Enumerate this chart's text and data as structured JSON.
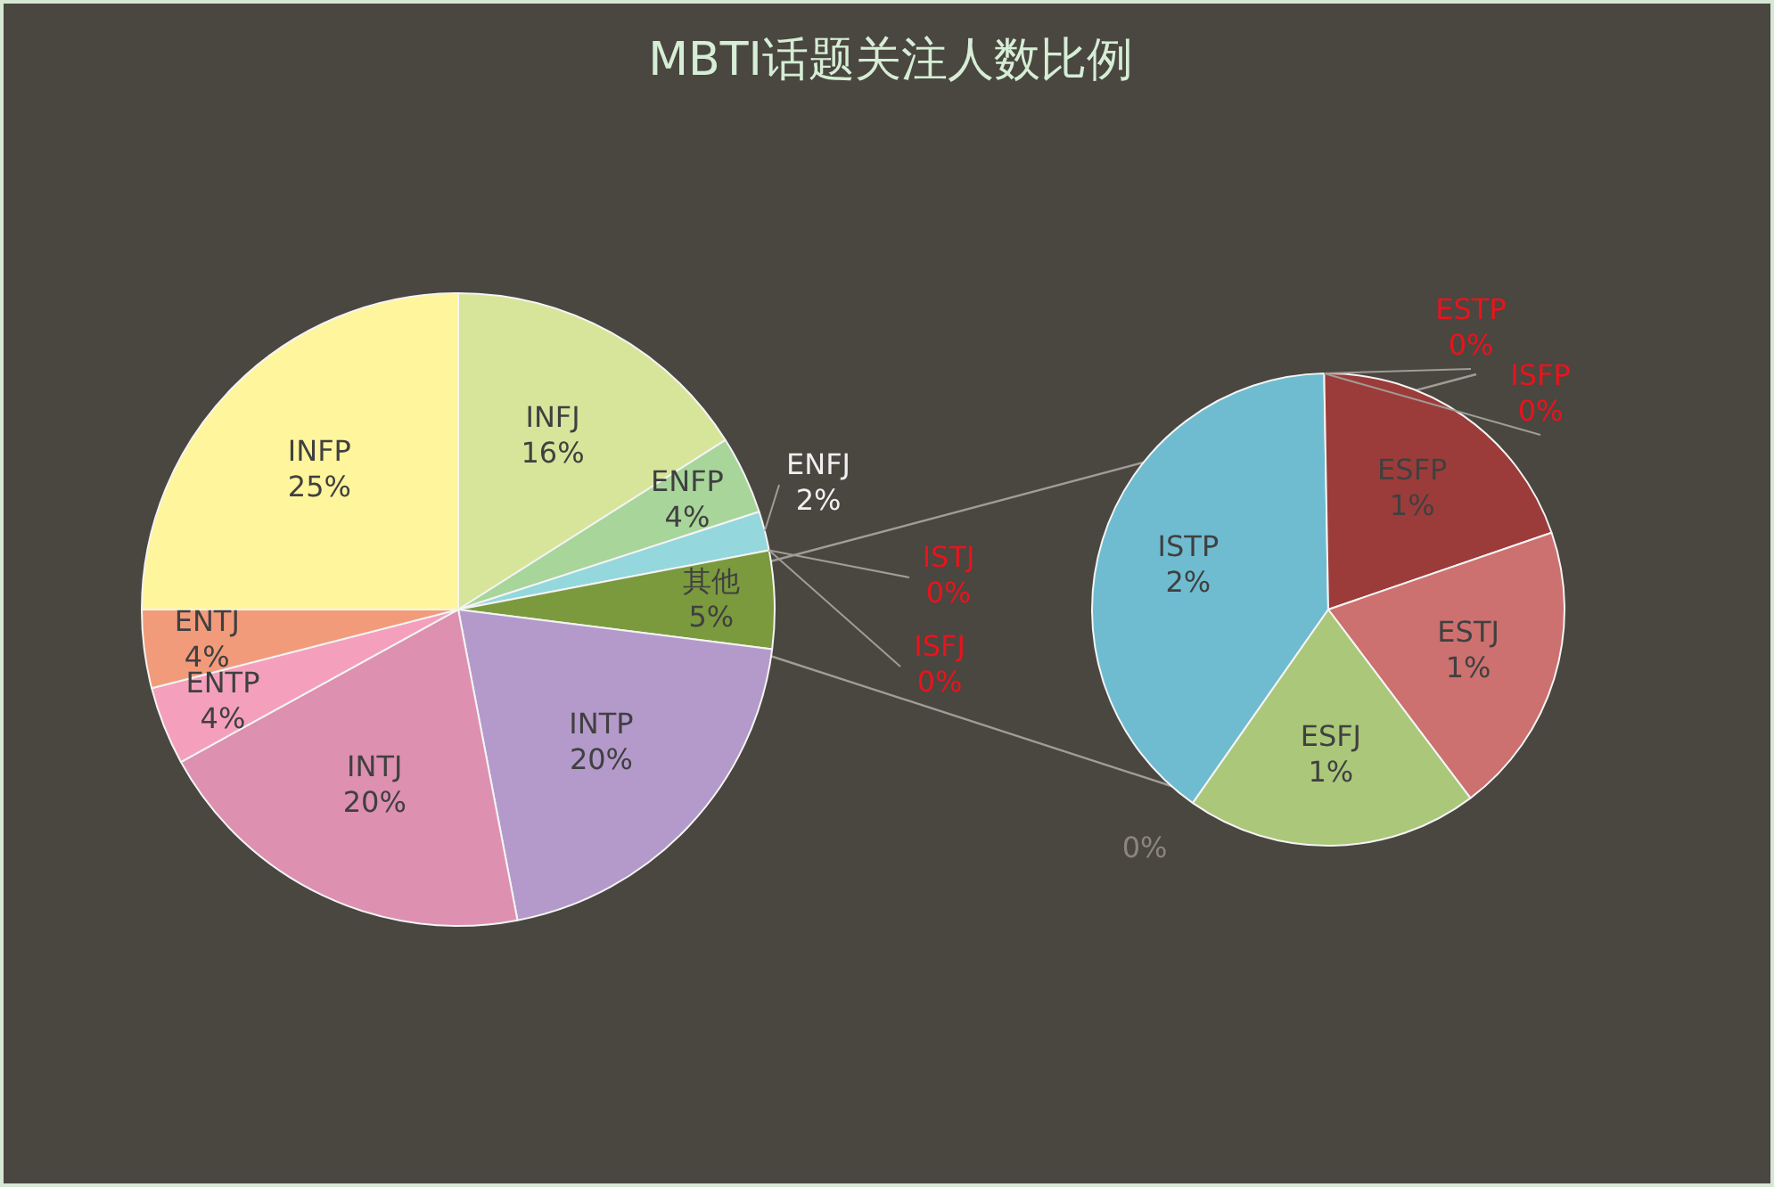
{
  "chart_data": [
    {
      "type": "pie",
      "title": "MBTI话题关注人数比例",
      "categories": [
        "INFJ",
        "ENFP",
        "ENFJ",
        "ISTJ",
        "ISFJ",
        "其他",
        "INTP",
        "INTJ",
        "ENTP",
        "ENTJ",
        "INFP"
      ],
      "values": [
        16,
        4,
        2,
        0,
        0,
        5,
        20,
        20,
        4,
        4,
        25
      ],
      "value_labels": [
        "16%",
        "4%",
        "2%",
        "0%",
        "0%",
        "5%",
        "20%",
        "20%",
        "4%",
        "4%",
        "25%"
      ],
      "colors": [
        "#d7e59b",
        "#a8d59a",
        "#94d7dc",
        "#8fb0d0",
        "#c0c0c0",
        "#7b9a3e",
        "#b49aca",
        "#de90b0",
        "#f4a0bc",
        "#f29b7b",
        "#fef59d"
      ]
    },
    {
      "type": "pie",
      "categories": [
        "ISTP",
        "ESTP",
        "ISFP",
        "ESFP",
        "ESTJ",
        "ESFJ"
      ],
      "values": [
        2,
        0,
        0,
        1,
        1,
        1
      ],
      "value_labels": [
        "2%",
        "0%",
        "0%",
        "1%",
        "1%",
        "1%"
      ],
      "colors": [
        "#6fbcd1",
        "#f0a030",
        "#5070b0",
        "#9c3c3a",
        "#cc716f",
        "#abc77a"
      ],
      "annotations": [
        "0%"
      ]
    }
  ]
}
